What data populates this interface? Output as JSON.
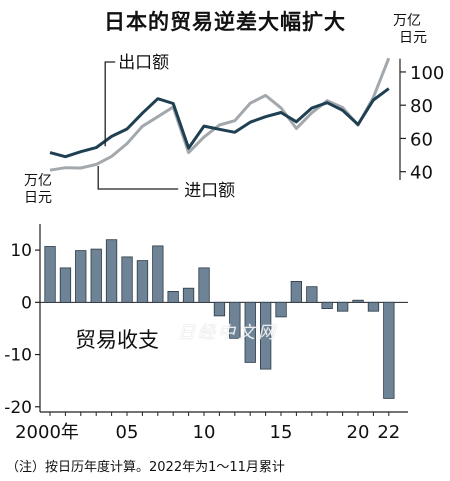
{
  "chart_data": [
    {
      "type": "line",
      "title": "日本的贸易逆差大幅扩大",
      "unit_label": [
        "万亿",
        "日元"
      ],
      "ylim": [
        35,
        112
      ],
      "yticks": [
        40,
        60,
        80,
        100
      ],
      "x": [
        2000,
        2001,
        2002,
        2003,
        2004,
        2005,
        2006,
        2007,
        2008,
        2009,
        2010,
        2011,
        2012,
        2013,
        2014,
        2015,
        2016,
        2017,
        2018,
        2019,
        2020,
        2021,
        2022
      ],
      "series": [
        {
          "name": "出口额",
          "color": "#1f3f52",
          "values": [
            51.5,
            49.0,
            52.0,
            54.5,
            61.2,
            65.7,
            75.2,
            83.9,
            81.0,
            54.2,
            67.4,
            65.5,
            63.7,
            69.8,
            73.1,
            75.6,
            70.0,
            78.3,
            81.5,
            76.9,
            68.4,
            83.1,
            90.0
          ]
        },
        {
          "name": "进口额",
          "color": "#a3a8ad",
          "values": [
            40.9,
            42.4,
            42.2,
            44.4,
            49.2,
            56.9,
            67.3,
            73.1,
            78.9,
            51.5,
            60.8,
            68.1,
            70.7,
            81.2,
            85.9,
            78.4,
            66.0,
            75.4,
            82.7,
            78.6,
            68.0,
            84.8,
            108.3
          ]
        }
      ],
      "grid": false
    },
    {
      "type": "bar",
      "unit_label": [
        "万亿",
        "日元"
      ],
      "annotation": "贸易收支",
      "ylim": [
        -21,
        15
      ],
      "yticks": [
        10,
        0,
        -10,
        -20
      ],
      "categories": [
        2000,
        2001,
        2002,
        2003,
        2004,
        2005,
        2006,
        2007,
        2008,
        2009,
        2010,
        2011,
        2012,
        2013,
        2014,
        2015,
        2016,
        2017,
        2018,
        2019,
        2020,
        2021,
        2022
      ],
      "xtick_labels": [
        "2000年",
        "05",
        "10",
        "15",
        "20",
        "22"
      ],
      "xtick_at": [
        2000,
        2005,
        2010,
        2015,
        2020,
        2022
      ],
      "values": [
        10.7,
        6.6,
        9.9,
        10.2,
        12.0,
        8.7,
        8.0,
        10.8,
        2.1,
        2.7,
        6.6,
        -2.6,
        -6.9,
        -11.5,
        -12.8,
        -2.8,
        4.0,
        3.0,
        -1.2,
        -1.7,
        0.4,
        -1.7,
        -18.4
      ],
      "color": "#6e8496"
    }
  ],
  "note": "（注）按日历年度计算。2022年为1～11月累计",
  "watermark": "日经中文网"
}
